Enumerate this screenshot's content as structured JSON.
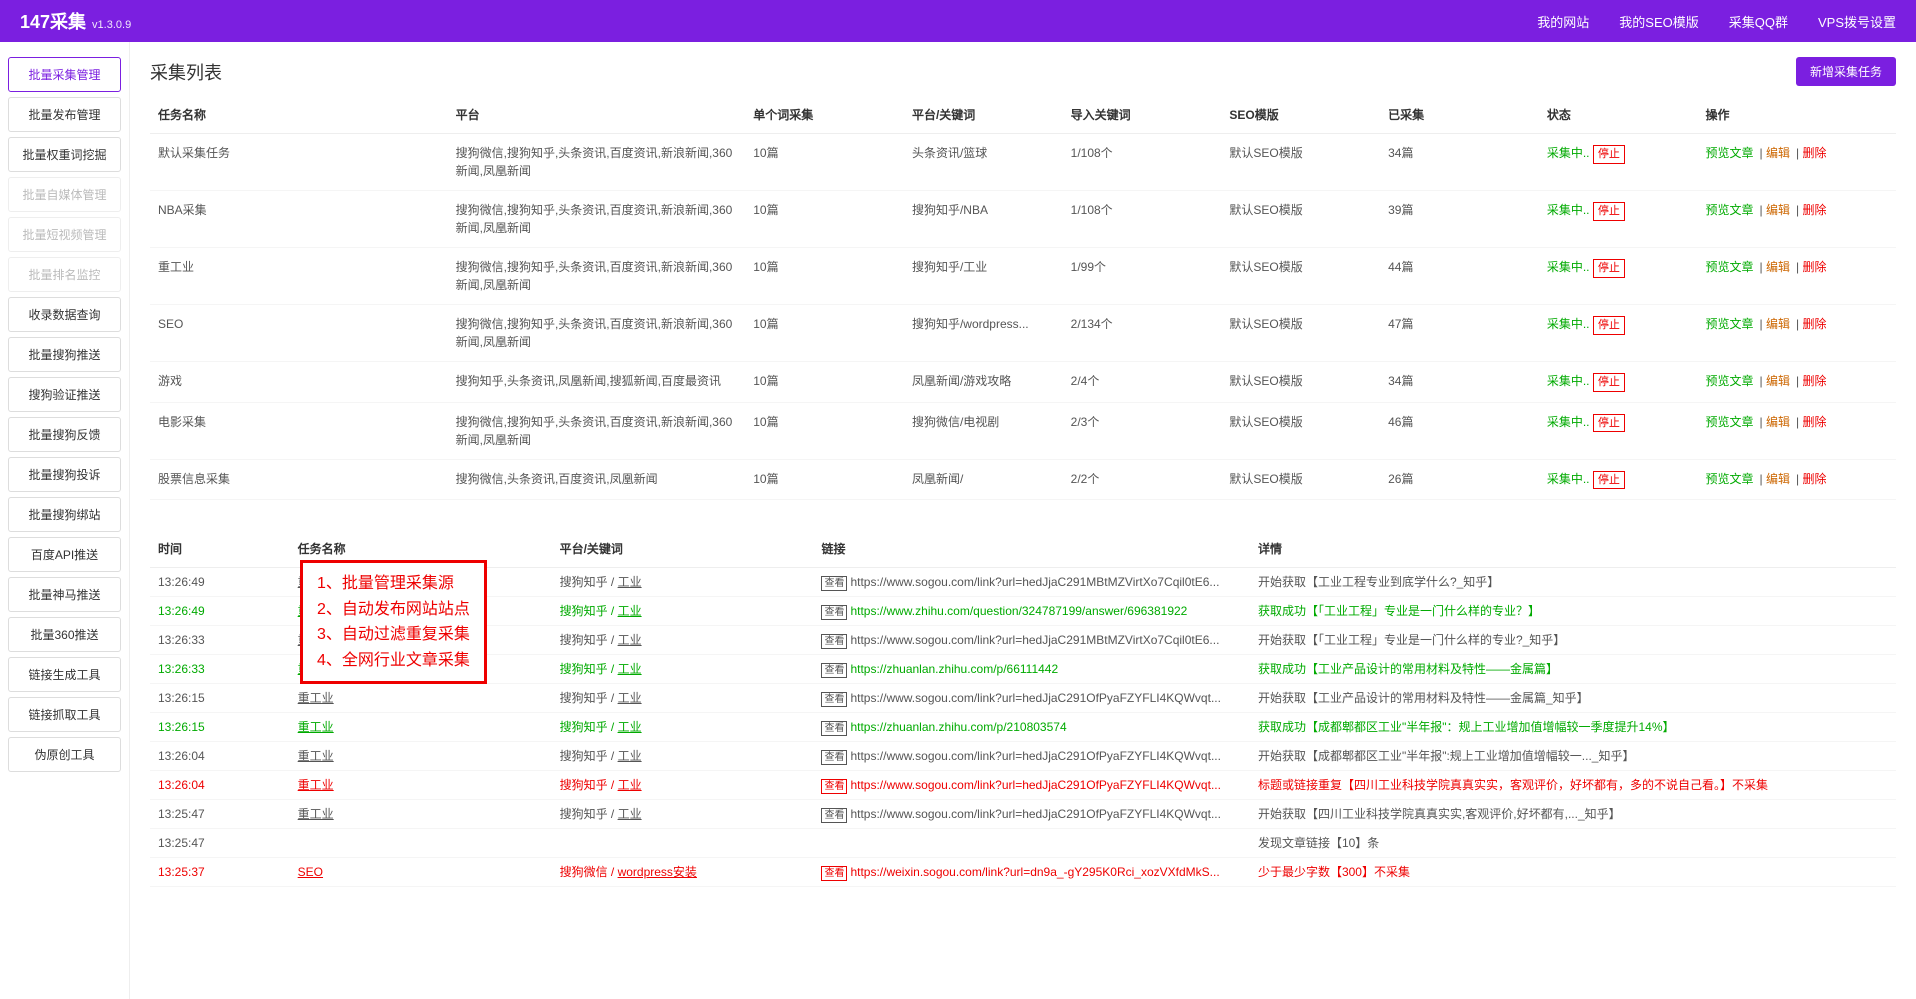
{
  "brand": {
    "name": "147采集",
    "version": "v1.3.0.9"
  },
  "nav": [
    "我的网站",
    "我的SEO模版",
    "采集QQ群",
    "VPS拨号设置"
  ],
  "sidebar": [
    {
      "label": "批量采集管理",
      "state": "active"
    },
    {
      "label": "批量发布管理",
      "state": ""
    },
    {
      "label": "批量权重词挖掘",
      "state": ""
    },
    {
      "label": "批量自媒体管理",
      "state": "disabled"
    },
    {
      "label": "批量短视频管理",
      "state": "disabled"
    },
    {
      "label": "批量排名监控",
      "state": "disabled"
    },
    {
      "label": "收录数据查询",
      "state": ""
    },
    {
      "label": "批量搜狗推送",
      "state": ""
    },
    {
      "label": "搜狗验证推送",
      "state": ""
    },
    {
      "label": "批量搜狗反馈",
      "state": ""
    },
    {
      "label": "批量搜狗投诉",
      "state": ""
    },
    {
      "label": "批量搜狗绑站",
      "state": ""
    },
    {
      "label": "百度API推送",
      "state": ""
    },
    {
      "label": "批量神马推送",
      "state": ""
    },
    {
      "label": "批量360推送",
      "state": ""
    },
    {
      "label": "链接生成工具",
      "state": ""
    },
    {
      "label": "链接抓取工具",
      "state": ""
    },
    {
      "label": "伪原创工具",
      "state": ""
    }
  ],
  "panel": {
    "title": "采集列表",
    "addBtn": "新增采集任务"
  },
  "cols": [
    "任务名称",
    "平台",
    "单个词采集",
    "平台/关键词",
    "导入关键词",
    "SEO模版",
    "已采集",
    "状态",
    "操作"
  ],
  "statusLabel": "采集中..",
  "stopLabel": "停止",
  "actions": {
    "preview": "预览文章",
    "edit": "编辑",
    "del": "删除"
  },
  "rows": [
    {
      "name": "默认采集任务",
      "plat": "搜狗微信,搜狗知乎,头条资讯,百度资讯,新浪新闻,360新闻,凤凰新闻",
      "per": "10篇",
      "kw": "头条资讯/篮球",
      "imp": "1/108个",
      "tpl": "默认SEO模版",
      "cnt": "34篇"
    },
    {
      "name": "NBA采集",
      "plat": "搜狗微信,搜狗知乎,头条资讯,百度资讯,新浪新闻,360新闻,凤凰新闻",
      "per": "10篇",
      "kw": "搜狗知乎/NBA",
      "imp": "1/108个",
      "tpl": "默认SEO模版",
      "cnt": "39篇"
    },
    {
      "name": "重工业",
      "plat": "搜狗微信,搜狗知乎,头条资讯,百度资讯,新浪新闻,360新闻,凤凰新闻",
      "per": "10篇",
      "kw": "搜狗知乎/工业",
      "imp": "1/99个",
      "tpl": "默认SEO模版",
      "cnt": "44篇"
    },
    {
      "name": "SEO",
      "plat": "搜狗微信,搜狗知乎,头条资讯,百度资讯,新浪新闻,360新闻,凤凰新闻",
      "per": "10篇",
      "kw": "搜狗知乎/wordpress...",
      "imp": "2/134个",
      "tpl": "默认SEO模版",
      "cnt": "47篇"
    },
    {
      "name": "游戏",
      "plat": "搜狗知乎,头条资讯,凤凰新闻,搜狐新闻,百度最资讯",
      "per": "10篇",
      "kw": "凤凰新闻/游戏攻略",
      "imp": "2/4个",
      "tpl": "默认SEO模版",
      "cnt": "34篇"
    },
    {
      "name": "电影采集",
      "plat": "搜狗微信,搜狗知乎,头条资讯,百度资讯,新浪新闻,360新闻,凤凰新闻",
      "per": "10篇",
      "kw": "搜狗微信/电视剧",
      "imp": "2/3个",
      "tpl": "默认SEO模版",
      "cnt": "46篇"
    },
    {
      "name": "股票信息采集",
      "plat": "搜狗微信,头条资讯,百度资讯,凤凰新闻",
      "per": "10篇",
      "kw": "凤凰新闻/",
      "imp": "2/2个",
      "tpl": "默认SEO模版",
      "cnt": "26篇"
    }
  ],
  "logCols": [
    "时间",
    "任务名称",
    "平台/关键词",
    "链接",
    "详情"
  ],
  "callout": [
    "1、批量管理采集源",
    "2、自动发布网站站点",
    "3、自动过滤重复采集",
    "4、全网行业文章采集"
  ],
  "tagLabel": "查看",
  "logs": [
    {
      "t": "13:26:49",
      "task": "重工业",
      "kw": "搜狗知乎 / 工业",
      "link": "https://www.sogou.com/link?url=hedJjaC291MBtMZVirtXo7Cqil0tE6...",
      "d": "开始获取【工业工程专业到底学什么?_知乎】",
      "c": ""
    },
    {
      "t": "13:26:49",
      "task": "重工业",
      "kw": "搜狗知乎 / 工业",
      "link": "https://www.zhihu.com/question/324787199/answer/696381922",
      "d": "获取成功【「工业工程」专业是一门什么样的专业？】",
      "c": "green"
    },
    {
      "t": "13:26:33",
      "task": "重工业",
      "kw": "搜狗知乎 / 工业",
      "link": "https://www.sogou.com/link?url=hedJjaC291MBtMZVirtXo7Cqil0tE6...",
      "d": "开始获取【「工业工程」专业是一门什么样的专业?_知乎】",
      "c": ""
    },
    {
      "t": "13:26:33",
      "task": "重工业",
      "kw": "搜狗知乎 / 工业",
      "link": "https://zhuanlan.zhihu.com/p/66111442",
      "d": "获取成功【工业产品设计的常用材料及特性——金属篇】",
      "c": "green"
    },
    {
      "t": "13:26:15",
      "task": "重工业",
      "kw": "搜狗知乎 / 工业",
      "link": "https://www.sogou.com/link?url=hedJjaC291OfPyaFZYFLI4KQWvqt...",
      "d": "开始获取【工业产品设计的常用材料及特性——金属篇_知乎】",
      "c": ""
    },
    {
      "t": "13:26:15",
      "task": "重工业",
      "kw": "搜狗知乎 / 工业",
      "link": "https://zhuanlan.zhihu.com/p/210803574",
      "d": "获取成功【成都郫都区工业\"半年报\"：规上工业增加值增幅较一季度提升14%】",
      "c": "green"
    },
    {
      "t": "13:26:04",
      "task": "重工业",
      "kw": "搜狗知乎 / 工业",
      "link": "https://www.sogou.com/link?url=hedJjaC291OfPyaFZYFLI4KQWvqt...",
      "d": "开始获取【成都郫都区工业\"半年报\":规上工业增加值增幅较一..._知乎】",
      "c": ""
    },
    {
      "t": "13:26:04",
      "task": "重工业",
      "kw": "搜狗知乎 / 工业",
      "link": "https://www.sogou.com/link?url=hedJjaC291OfPyaFZYFLI4KQWvqt...",
      "d": "标题或链接重复【四川工业科技学院真真实实，客观评价，好坏都有，多的不说自己看。】不采集",
      "c": "red"
    },
    {
      "t": "13:25:47",
      "task": "重工业",
      "kw": "搜狗知乎 / 工业",
      "link": "https://www.sogou.com/link?url=hedJjaC291OfPyaFZYFLI4KQWvqt...",
      "d": "开始获取【四川工业科技学院真真实实,客观评价,好坏都有,..._知乎】",
      "c": ""
    },
    {
      "t": "13:25:47",
      "task": "",
      "kw": "",
      "link": "",
      "d": "发现文章链接【10】条",
      "c": ""
    },
    {
      "t": "13:25:37",
      "task": "SEO",
      "kw": "搜狗微信 / wordpress安装",
      "link": "https://weixin.sogou.com/link?url=dn9a_-gY295K0Rci_xozVXfdMkS...",
      "d": "少于最少字数【300】不采集",
      "c": "red"
    }
  ]
}
